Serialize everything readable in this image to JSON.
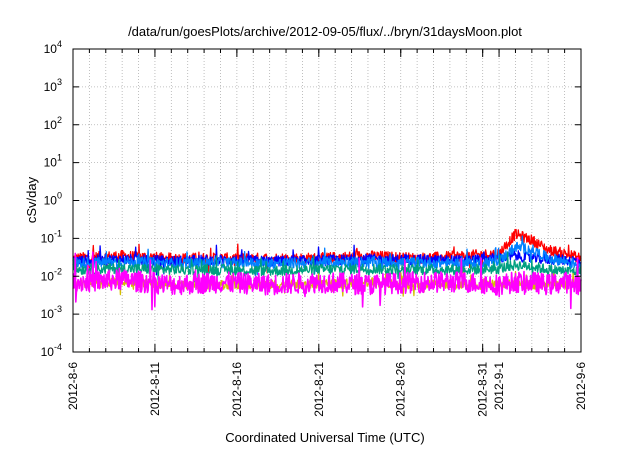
{
  "chart_data": {
    "type": "line",
    "title": "/data/run/goesPlots/archive/2012-09-05/flux/../bryn/31daysMoon.plot",
    "xlabel": "Coordinated Universal Time (UTC)",
    "ylabel": "cSv/day",
    "yscale": "log",
    "ylim": [
      0.0001,
      10000
    ],
    "y_ticks": [
      {
        "value": 0.0001,
        "base": "10",
        "exp": "-4"
      },
      {
        "value": 0.001,
        "base": "10",
        "exp": "-3"
      },
      {
        "value": 0.01,
        "base": "10",
        "exp": "-2"
      },
      {
        "value": 0.1,
        "base": "10",
        "exp": "-1"
      },
      {
        "value": 1,
        "base": "10",
        "exp": "0"
      },
      {
        "value": 10,
        "base": "10",
        "exp": "1"
      },
      {
        "value": 100,
        "base": "10",
        "exp": "2"
      },
      {
        "value": 1000,
        "base": "10",
        "exp": "3"
      },
      {
        "value": 10000,
        "base": "10",
        "exp": "4"
      }
    ],
    "xlim": [
      "2012-08-06",
      "2012-09-06"
    ],
    "x_ticks": [
      {
        "date": "2012-08-06",
        "label": "2012-8-6"
      },
      {
        "date": "2012-08-11",
        "label": "2012-8-11"
      },
      {
        "date": "2012-08-16",
        "label": "2012-8-16"
      },
      {
        "date": "2012-08-21",
        "label": "2012-8-21"
      },
      {
        "date": "2012-08-26",
        "label": "2012-8-26"
      },
      {
        "date": "2012-08-31",
        "label": "2012-8-31"
      },
      {
        "date": "2012-09-01",
        "label": "2012-9-1"
      },
      {
        "date": "2012-09-06",
        "label": "2012-9-6"
      }
    ],
    "grid": true,
    "legend": "none",
    "series": [
      {
        "color": "#ff0000",
        "x": [
          "2012-08-06",
          "2012-08-09",
          "2012-08-12",
          "2012-08-15",
          "2012-08-18",
          "2012-08-21",
          "2012-08-24",
          "2012-08-27",
          "2012-08-30",
          "2012-09-01",
          "2012-09-02",
          "2012-09-03",
          "2012-09-04",
          "2012-09-05",
          "2012-09-06"
        ],
        "y": [
          0.03,
          0.035,
          0.03,
          0.03,
          0.03,
          0.03,
          0.035,
          0.03,
          0.035,
          0.04,
          0.13,
          0.09,
          0.05,
          0.04,
          0.03
        ]
      },
      {
        "color": "#0000ff",
        "x": [
          "2012-08-06",
          "2012-08-09",
          "2012-08-12",
          "2012-08-15",
          "2012-08-18",
          "2012-08-21",
          "2012-08-24",
          "2012-08-27",
          "2012-08-30",
          "2012-09-01",
          "2012-09-02",
          "2012-09-03",
          "2012-09-04",
          "2012-09-05",
          "2012-09-06"
        ],
        "y": [
          0.025,
          0.028,
          0.025,
          0.027,
          0.025,
          0.026,
          0.028,
          0.027,
          0.026,
          0.03,
          0.035,
          0.03,
          0.028,
          0.027,
          0.025
        ]
      },
      {
        "color": "#0080ff",
        "x": [
          "2012-08-06",
          "2012-08-09",
          "2012-08-12",
          "2012-08-15",
          "2012-08-18",
          "2012-08-21",
          "2012-08-24",
          "2012-08-27",
          "2012-08-30",
          "2012-09-01",
          "2012-09-02",
          "2012-09-03",
          "2012-09-04",
          "2012-09-05",
          "2012-09-06"
        ],
        "y": [
          0.022,
          0.024,
          0.022,
          0.023,
          0.022,
          0.023,
          0.024,
          0.023,
          0.022,
          0.025,
          0.06,
          0.05,
          0.03,
          0.025,
          0.02
        ]
      },
      {
        "color": "#00a080",
        "x": [
          "2012-08-06",
          "2012-08-09",
          "2012-08-12",
          "2012-08-15",
          "2012-08-18",
          "2012-08-21",
          "2012-08-24",
          "2012-08-27",
          "2012-08-30",
          "2012-09-01",
          "2012-09-02",
          "2012-09-03",
          "2012-09-04",
          "2012-09-05",
          "2012-09-06"
        ],
        "y": [
          0.015,
          0.016,
          0.015,
          0.015,
          0.014,
          0.015,
          0.016,
          0.015,
          0.015,
          0.016,
          0.02,
          0.018,
          0.015,
          0.014,
          0.013
        ]
      },
      {
        "color": "#d4c000",
        "x": [
          "2012-08-06",
          "2012-08-09",
          "2012-08-12",
          "2012-08-15",
          "2012-08-18",
          "2012-08-21",
          "2012-08-24",
          "2012-08-27",
          "2012-08-30",
          "2012-09-01",
          "2012-09-02",
          "2012-09-03",
          "2012-09-04",
          "2012-09-05",
          "2012-09-06"
        ],
        "y": [
          0.006,
          0.007,
          0.006,
          0.006,
          0.006,
          0.006,
          0.007,
          0.006,
          0.006,
          0.006,
          0.007,
          0.006,
          0.006,
          0.006,
          0.006
        ]
      },
      {
        "color": "#ff00ff",
        "x": [
          "2012-08-06",
          "2012-08-09",
          "2012-08-12",
          "2012-08-15",
          "2012-08-18",
          "2012-08-21",
          "2012-08-24",
          "2012-08-27",
          "2012-08-30",
          "2012-09-01",
          "2012-09-02",
          "2012-09-03",
          "2012-09-04",
          "2012-09-05",
          "2012-09-06"
        ],
        "y": [
          0.007,
          0.008,
          0.006,
          0.007,
          0.006,
          0.007,
          0.006,
          0.007,
          0.007,
          0.006,
          0.007,
          0.007,
          0.006,
          0.007,
          0.006
        ]
      }
    ]
  }
}
